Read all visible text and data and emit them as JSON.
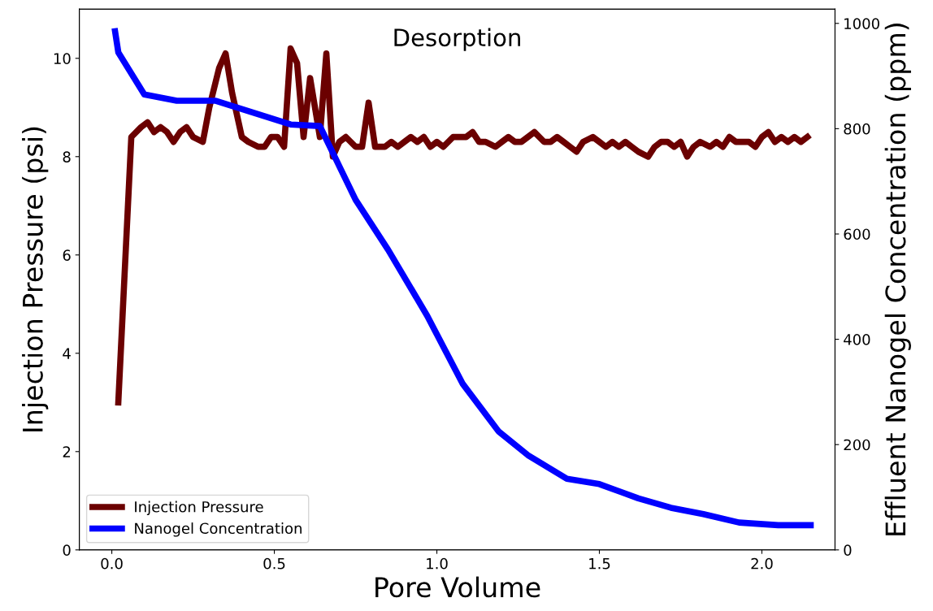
{
  "chart_data": {
    "type": "line",
    "title": "Desorption",
    "xlabel": "Pore Volume",
    "ylabel": "Injection Pressure (psi)",
    "y2label": "Effluent Nanogel Concentration (ppm)",
    "xlim": [
      -0.1,
      2.225
    ],
    "xticks": [
      {
        "value": 0,
        "label": "0.0"
      },
      0.5,
      {
        "value": 1,
        "label": "1.0"
      },
      1.5,
      {
        "value": 2,
        "label": "2.0"
      }
    ],
    "ylim": [
      0,
      11
    ],
    "yticks": [
      0,
      2,
      4,
      6,
      8,
      10
    ],
    "y2lim": [
      0,
      1027
    ],
    "y2ticks": [
      0,
      200,
      400,
      600,
      800,
      1000
    ],
    "grid": false,
    "legend": "bottom left",
    "line_style": "solid",
    "marker": "none",
    "series": [
      {
        "name": "Injection Pressure",
        "color": "#6b0000",
        "x": [
          0.02,
          0.06,
          0.09,
          0.11,
          0.13,
          0.15,
          0.17,
          0.19,
          0.21,
          0.23,
          0.25,
          0.28,
          0.3,
          0.33,
          0.35,
          0.37,
          0.4,
          0.42,
          0.45,
          0.47,
          0.49,
          0.51,
          0.53,
          0.55,
          0.57,
          0.59,
          0.61,
          0.64,
          0.66,
          0.68,
          0.7,
          0.72,
          0.75,
          0.77,
          0.79,
          0.81,
          0.84,
          0.86,
          0.88,
          0.9,
          0.92,
          0.94,
          0.96,
          0.98,
          1.0,
          1.02,
          1.05,
          1.07,
          1.09,
          1.11,
          1.13,
          1.15,
          1.18,
          1.2,
          1.22,
          1.24,
          1.26,
          1.28,
          1.3,
          1.33,
          1.35,
          1.37,
          1.39,
          1.41,
          1.43,
          1.45,
          1.48,
          1.5,
          1.52,
          1.54,
          1.56,
          1.58,
          1.6,
          1.62,
          1.65,
          1.67,
          1.69,
          1.71,
          1.73,
          1.75,
          1.77,
          1.79,
          1.81,
          1.84,
          1.86,
          1.88,
          1.9,
          1.92,
          1.94,
          1.96,
          1.98,
          2.0,
          2.02,
          2.04,
          2.06,
          2.08,
          2.1,
          2.12,
          2.14
        ],
        "values": [
          3.0,
          8.4,
          8.6,
          8.7,
          8.5,
          8.6,
          8.5,
          8.3,
          8.5,
          8.6,
          8.4,
          8.3,
          9.0,
          9.8,
          10.1,
          9.3,
          8.4,
          8.3,
          8.2,
          8.2,
          8.4,
          8.4,
          8.2,
          10.2,
          9.9,
          8.4,
          9.6,
          8.4,
          10.1,
          8.0,
          8.3,
          8.4,
          8.2,
          8.2,
          9.1,
          8.2,
          8.2,
          8.3,
          8.2,
          8.3,
          8.4,
          8.3,
          8.4,
          8.2,
          8.3,
          8.2,
          8.4,
          8.4,
          8.4,
          8.5,
          8.3,
          8.3,
          8.2,
          8.3,
          8.4,
          8.3,
          8.3,
          8.4,
          8.5,
          8.3,
          8.3,
          8.4,
          8.3,
          8.2,
          8.1,
          8.3,
          8.4,
          8.3,
          8.2,
          8.3,
          8.2,
          8.3,
          8.2,
          8.1,
          8.0,
          8.2,
          8.3,
          8.3,
          8.2,
          8.3,
          8.0,
          8.2,
          8.3,
          8.2,
          8.3,
          8.2,
          8.4,
          8.3,
          8.3,
          8.3,
          8.2,
          8.4,
          8.5,
          8.3,
          8.4,
          8.3,
          8.4,
          8.3,
          8.4
        ]
      },
      {
        "name": "Nanogel Concentration",
        "color": "#0000ff",
        "axis": "y2",
        "x": [
          0.01,
          0.02,
          0.1,
          0.2,
          0.32,
          0.55,
          0.64,
          0.75,
          0.85,
          0.97,
          1.08,
          1.19,
          1.28,
          1.4,
          1.5,
          1.62,
          1.72,
          1.82,
          1.93,
          2.05,
          2.15
        ],
        "values": [
          985,
          945,
          865,
          853,
          853,
          808,
          805,
          665,
          570,
          445,
          315,
          225,
          180,
          135,
          125,
          98,
          80,
          68,
          52,
          47,
          47
        ]
      }
    ]
  }
}
